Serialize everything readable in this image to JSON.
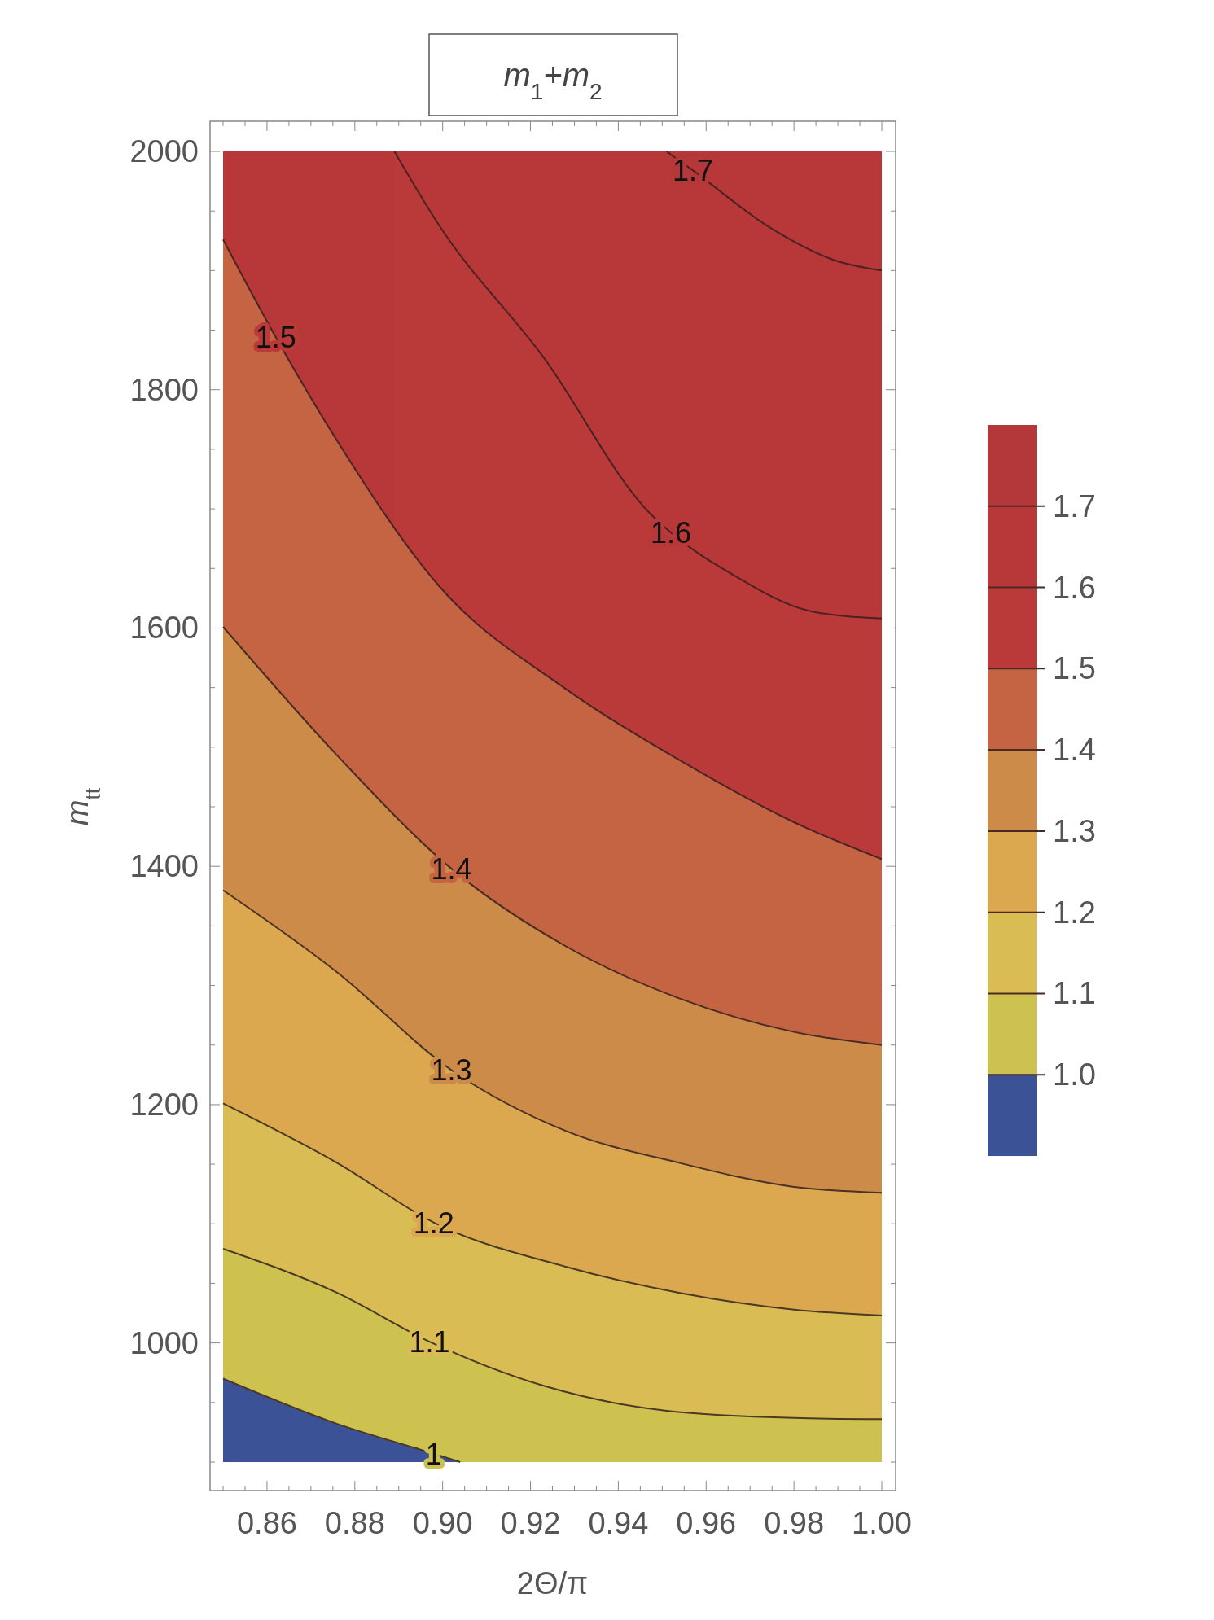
{
  "chart_data": {
    "type": "area",
    "title": "m$_{1}$+m$_{2}$",
    "xlabel": "2Θ/π",
    "ylabel": "m$_{tt}$",
    "xlim": [
      0.85,
      1.0
    ],
    "xticks": [
      {
        "value": 0.86,
        "label": "0.86"
      },
      {
        "value": 0.88,
        "label": "0.88"
      },
      {
        "value": 0.9,
        "label": "0.90"
      },
      {
        "value": 0.92,
        "label": "0.92"
      },
      {
        "value": 0.94,
        "label": "0.94"
      },
      {
        "value": 0.96,
        "label": "0.96"
      },
      {
        "value": 0.98,
        "label": "0.98"
      },
      {
        "value": 1.0,
        "label": "1.00"
      }
    ],
    "ylim": [
      900,
      2000
    ],
    "yticks": [
      1000,
      1200,
      1400,
      1600,
      1800,
      2000
    ],
    "clim": [
      0.9,
      1.8
    ],
    "cticks": [
      {
        "value": 1.0,
        "label": "1.0"
      },
      1.1,
      1.2,
      1.3,
      1.4,
      1.5,
      1.6,
      1.7
    ],
    "colors": [
      "#3b5396",
      "#cdc24f",
      "#d9bc53",
      "#dba74f",
      "#cd8b4a",
      "#c56442",
      "#b93a39",
      "#b83738",
      "#b43839"
    ],
    "series": [
      {
        "color": "#4a3a24",
        "x": [
          0.85,
          0.876,
          0.898,
          0.904
        ],
        "values": [
          970,
          932,
          907,
          900
        ]
      },
      {
        "color": "#4a3a24",
        "x": [
          0.85,
          0.876,
          0.897,
          0.923,
          0.951,
          0.98,
          1.0
        ],
        "values": [
          1079,
          1042,
          1001,
          964,
          943,
          937,
          936
        ]
      },
      {
        "color": "#4a3a24",
        "x": [
          0.85,
          0.876,
          0.898,
          0.928,
          0.954,
          0.98,
          1.0
        ],
        "values": [
          1201,
          1151,
          1101,
          1064,
          1042,
          1028,
          1023
        ]
      },
      {
        "color": "#4a3226",
        "x": [
          0.85,
          0.876,
          0.902,
          0.928,
          0.954,
          0.98,
          1.0
        ],
        "values": [
          1380,
          1311,
          1229,
          1178,
          1151,
          1131,
          1126
        ]
      },
      {
        "color": "#4a2c24",
        "x": [
          0.85,
          0.876,
          0.902,
          0.928,
          0.954,
          0.98,
          1.0
        ],
        "values": [
          1601,
          1493,
          1398,
          1333,
          1289,
          1261,
          1250
        ]
      },
      {
        "color": "#4a2424",
        "x": [
          0.85,
          0.862,
          0.876,
          0.899,
          0.928,
          0.954,
          0.98,
          1.0
        ],
        "values": [
          1926,
          1844,
          1757,
          1636,
          1549,
          1489,
          1437,
          1406
        ]
      },
      {
        "color": "#4a2222",
        "x": [
          0.889,
          0.899,
          0.923,
          0.947,
          0.952,
          0.966,
          0.984,
          1.0
        ],
        "values": [
          2000,
          1939,
          1827,
          1697,
          1680,
          1645,
          1614,
          1608
        ]
      },
      {
        "type": "line",
        "color": "#4a2222",
        "x": [
          0.951,
          0.957,
          0.975,
          0.989,
          1.0
        ],
        "values": [
          2000,
          1984,
          1935,
          1909,
          1900
        ]
      }
    ],
    "annotations": [
      {
        "text": "1",
        "x": 0.898,
        "y": 907
      },
      {
        "text": "1.1",
        "x": 0.897,
        "y": 1001
      },
      {
        "text": "1.2",
        "x": 0.898,
        "y": 1101
      },
      {
        "text": "1.3",
        "x": 0.902,
        "y": 1229
      },
      {
        "text": "1.4",
        "x": 0.902,
        "y": 1398
      },
      {
        "text": "1.5",
        "x": 0.862,
        "y": 1844
      },
      {
        "text": "1.6",
        "x": 0.952,
        "y": 1680
      },
      {
        "text": "1.7",
        "x": 0.957,
        "y": 1984
      }
    ]
  }
}
